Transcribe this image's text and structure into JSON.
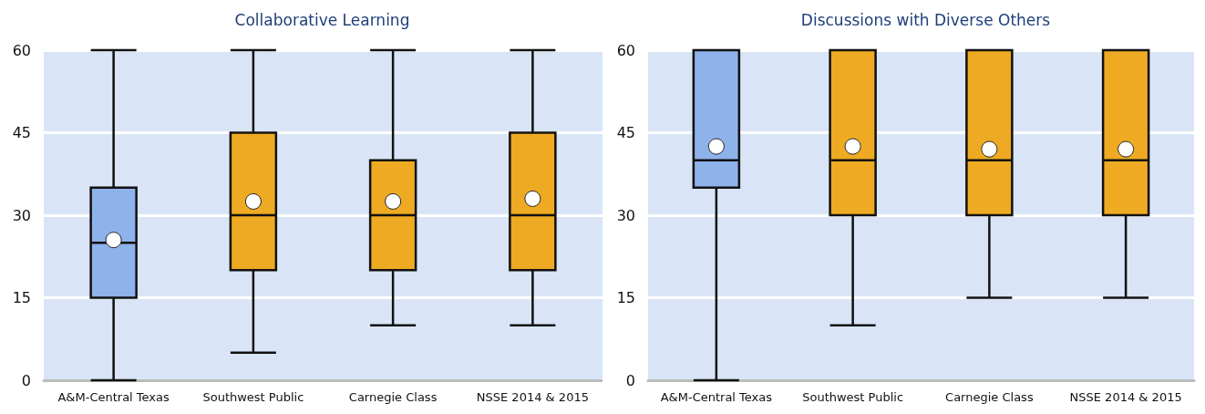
{
  "chart_data": [
    {
      "type": "box",
      "title": "Collaborative Learning",
      "categories": [
        "A&M-Central Texas",
        "Southwest Public",
        "Carnegie Class",
        "NSSE 2014 & 2015"
      ],
      "colors": [
        "#8eb2ea",
        "#eeaa22",
        "#eeaa22",
        "#eeaa22"
      ],
      "boxes": [
        {
          "low": 0,
          "q1": 15,
          "median": 25,
          "q3": 35,
          "high": 60,
          "mean": 25.5
        },
        {
          "low": 5,
          "q1": 20,
          "median": 30,
          "q3": 45,
          "high": 60,
          "mean": 32.5
        },
        {
          "low": 10,
          "q1": 20,
          "median": 30,
          "q3": 40,
          "high": 60,
          "mean": 32.5
        },
        {
          "low": 10,
          "q1": 20,
          "median": 30,
          "q3": 45,
          "high": 60,
          "mean": 33
        }
      ],
      "ylim": [
        0,
        60
      ],
      "yticks": [
        0,
        15,
        30,
        45,
        60
      ],
      "grid": "y"
    },
    {
      "type": "box",
      "title": "Discussions with Diverse Others",
      "categories": [
        "A&M-Central Texas",
        "Southwest Public",
        "Carnegie Class",
        "NSSE 2014 & 2015"
      ],
      "colors": [
        "#8eb2ea",
        "#eeaa22",
        "#eeaa22",
        "#eeaa22"
      ],
      "boxes": [
        {
          "low": 0,
          "q1": 35,
          "median": 40,
          "q3": 60,
          "high": 60,
          "mean": 42.5
        },
        {
          "low": 10,
          "q1": 30,
          "median": 40,
          "q3": 60,
          "high": 60,
          "mean": 42.5
        },
        {
          "low": 15,
          "q1": 30,
          "median": 40,
          "q3": 60,
          "high": 60,
          "mean": 42
        },
        {
          "low": 15,
          "q1": 30,
          "median": 40,
          "q3": 60,
          "high": 60,
          "mean": 42
        }
      ],
      "ylim": [
        0,
        60
      ],
      "yticks": [
        0,
        15,
        30,
        45,
        60
      ],
      "grid": "y"
    }
  ]
}
